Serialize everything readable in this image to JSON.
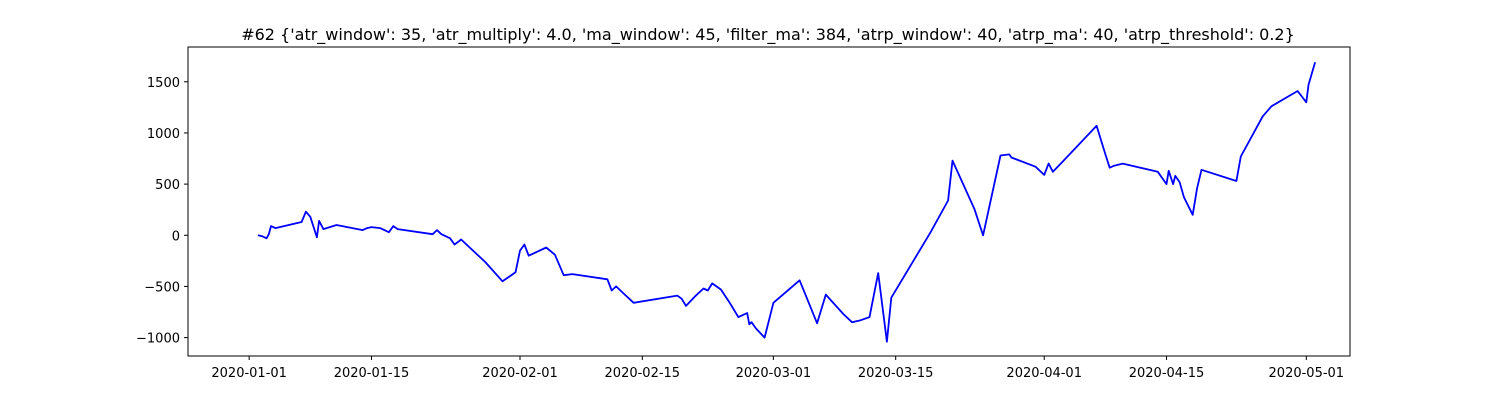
{
  "chart_data": {
    "type": "line",
    "title": "#62 {'atr_window': 35, 'atr_multiply': 4.0, 'ma_window': 45, 'filter_ma': 384, 'atrp_window': 40, 'atrp_ma': 40, 'atrp_threshold': 0.2}",
    "xlabel": "",
    "ylabel": "",
    "x_ticks": [
      "2020-01-01",
      "2020-01-15",
      "2020-02-01",
      "2020-02-15",
      "2020-03-01",
      "2020-03-15",
      "2020-04-01",
      "2020-04-15",
      "2020-05-01"
    ],
    "y_ticks": [
      -1000,
      -500,
      0,
      500,
      1000,
      1500
    ],
    "xlim": [
      "2019-12-25",
      "2020-05-06"
    ],
    "ylim": [
      -1180,
      1840
    ],
    "grid": false,
    "series": [
      {
        "color": "#0000ff",
        "points": [
          [
            "2020-01-02",
            0
          ],
          [
            "2020-01-02T12:00",
            -10
          ],
          [
            "2020-01-03",
            -30
          ],
          [
            "2020-01-03T06:00",
            10
          ],
          [
            "2020-01-03T12:00",
            90
          ],
          [
            "2020-01-04",
            70
          ],
          [
            "2020-01-07",
            130
          ],
          [
            "2020-01-07T12:00",
            230
          ],
          [
            "2020-01-08",
            180
          ],
          [
            "2020-01-08T18:00",
            -20
          ],
          [
            "2020-01-09",
            140
          ],
          [
            "2020-01-09T12:00",
            60
          ],
          [
            "2020-01-11",
            100
          ],
          [
            "2020-01-14",
            50
          ],
          [
            "2020-01-14T12:00",
            70
          ],
          [
            "2020-01-15",
            80
          ],
          [
            "2020-01-16",
            70
          ],
          [
            "2020-01-17",
            30
          ],
          [
            "2020-01-17T12:00",
            90
          ],
          [
            "2020-01-18",
            60
          ],
          [
            "2020-01-22",
            10
          ],
          [
            "2020-01-22T12:00",
            50
          ],
          [
            "2020-01-23",
            10
          ],
          [
            "2020-01-24",
            -30
          ],
          [
            "2020-01-24T12:00",
            -90
          ],
          [
            "2020-01-25",
            -60
          ],
          [
            "2020-01-25T06:00",
            -40
          ],
          [
            "2020-01-28",
            -260
          ],
          [
            "2020-01-30",
            -450
          ],
          [
            "2020-01-31",
            -390
          ],
          [
            "2020-01-31T12:00",
            -360
          ],
          [
            "2020-02-01",
            -150
          ],
          [
            "2020-02-01T12:00",
            -90
          ],
          [
            "2020-02-02",
            -200
          ],
          [
            "2020-02-04",
            -120
          ],
          [
            "2020-02-05",
            -190
          ],
          [
            "2020-02-06",
            -390
          ],
          [
            "2020-02-07",
            -380
          ],
          [
            "2020-02-11",
            -430
          ],
          [
            "2020-02-11T12:00",
            -540
          ],
          [
            "2020-02-12",
            -500
          ],
          [
            "2020-02-13",
            -580
          ],
          [
            "2020-02-13T12:00",
            -620
          ],
          [
            "2020-02-14",
            -660
          ],
          [
            "2020-02-19",
            -590
          ],
          [
            "2020-02-19T12:00",
            -620
          ],
          [
            "2020-02-20",
            -690
          ],
          [
            "2020-02-21",
            -600
          ],
          [
            "2020-02-22",
            -520
          ],
          [
            "2020-02-22T12:00",
            -540
          ],
          [
            "2020-02-23",
            -470
          ],
          [
            "2020-02-24",
            -530
          ],
          [
            "2020-02-25",
            -660
          ],
          [
            "2020-02-26",
            -800
          ],
          [
            "2020-02-26T12:00",
            -780
          ],
          [
            "2020-02-27",
            -760
          ],
          [
            "2020-02-27T06:00",
            -870
          ],
          [
            "2020-02-27T12:00",
            -850
          ],
          [
            "2020-02-28",
            -910
          ],
          [
            "2020-02-29",
            -1000
          ],
          [
            "2020-03-01",
            -660
          ],
          [
            "2020-03-04",
            -440
          ],
          [
            "2020-03-06",
            -860
          ],
          [
            "2020-03-07",
            -580
          ],
          [
            "2020-03-09",
            -770
          ],
          [
            "2020-03-10",
            -850
          ],
          [
            "2020-03-11",
            -830
          ],
          [
            "2020-03-12",
            -800
          ],
          [
            "2020-03-13",
            -370
          ],
          [
            "2020-03-14",
            -1040
          ],
          [
            "2020-03-14T12:00",
            -610
          ],
          [
            "2020-03-19",
            30
          ],
          [
            "2020-03-21",
            340
          ],
          [
            "2020-03-21T12:00",
            730
          ],
          [
            "2020-03-24",
            260
          ],
          [
            "2020-03-25",
            0
          ],
          [
            "2020-03-27",
            780
          ],
          [
            "2020-03-28",
            790
          ],
          [
            "2020-03-28T06:00",
            760
          ],
          [
            "2020-03-31",
            670
          ],
          [
            "2020-04-01",
            590
          ],
          [
            "2020-04-01T12:00",
            700
          ],
          [
            "2020-04-02",
            620
          ],
          [
            "2020-04-03",
            710
          ],
          [
            "2020-04-07",
            1070
          ],
          [
            "2020-04-08",
            790
          ],
          [
            "2020-04-08T12:00",
            660
          ],
          [
            "2020-04-09",
            680
          ],
          [
            "2020-04-10",
            700
          ],
          [
            "2020-04-14",
            620
          ],
          [
            "2020-04-15",
            500
          ],
          [
            "2020-04-15T06:00",
            630
          ],
          [
            "2020-04-15T18:00",
            500
          ],
          [
            "2020-04-16",
            580
          ],
          [
            "2020-04-16T12:00",
            520
          ],
          [
            "2020-04-17",
            370
          ],
          [
            "2020-04-18",
            200
          ],
          [
            "2020-04-18T12:00",
            460
          ],
          [
            "2020-04-19",
            640
          ],
          [
            "2020-04-23",
            530
          ],
          [
            "2020-04-23T12:00",
            770
          ],
          [
            "2020-04-26",
            1160
          ],
          [
            "2020-04-27",
            1260
          ],
          [
            "2020-04-30",
            1410
          ],
          [
            "2020-05-01",
            1300
          ],
          [
            "2020-05-01T06:00",
            1470
          ],
          [
            "2020-05-02",
            1690
          ]
        ]
      }
    ]
  }
}
